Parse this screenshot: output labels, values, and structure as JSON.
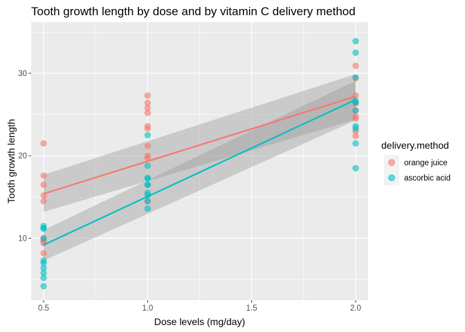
{
  "chart_data": {
    "type": "scatter",
    "title": "Tooth growth length by dose and by vitamin C delivery method",
    "xlabel": "Dose levels (mg/day)",
    "ylabel": "Tooth growth length",
    "xlim": [
      0.44,
      2.06
    ],
    "ylim": [
      2.5,
      36.2
    ],
    "x_ticks": [
      0.5,
      1.0,
      1.5,
      2.0
    ],
    "x_tick_labels": [
      "0.5",
      "1.0",
      "1.5",
      "2.0"
    ],
    "y_ticks": [
      10,
      20,
      30
    ],
    "y_tick_labels": [
      "10",
      "20",
      "30"
    ],
    "grid": true,
    "legend_title": "delivery.method",
    "legend_position": "right",
    "series": [
      {
        "name": "orange juice",
        "color": "#F8766D",
        "points": [
          [
            0.5,
            15.2
          ],
          [
            0.5,
            21.5
          ],
          [
            0.5,
            17.6
          ],
          [
            0.5,
            9.7
          ],
          [
            0.5,
            14.5
          ],
          [
            0.5,
            10.0
          ],
          [
            0.5,
            8.2
          ],
          [
            0.5,
            9.4
          ],
          [
            0.5,
            16.5
          ],
          [
            0.5,
            9.7
          ],
          [
            1.0,
            19.7
          ],
          [
            1.0,
            23.3
          ],
          [
            1.0,
            23.6
          ],
          [
            1.0,
            26.4
          ],
          [
            1.0,
            20.0
          ],
          [
            1.0,
            25.2
          ],
          [
            1.0,
            25.8
          ],
          [
            1.0,
            21.2
          ],
          [
            1.0,
            14.5
          ],
          [
            1.0,
            27.3
          ],
          [
            2.0,
            25.5
          ],
          [
            2.0,
            26.4
          ],
          [
            2.0,
            22.4
          ],
          [
            2.0,
            24.5
          ],
          [
            2.0,
            24.8
          ],
          [
            2.0,
            30.9
          ],
          [
            2.0,
            26.4
          ],
          [
            2.0,
            27.3
          ],
          [
            2.0,
            29.4
          ],
          [
            2.0,
            23.0
          ]
        ],
        "fit": {
          "x": [
            0.5,
            2.0
          ],
          "y": [
            15.4,
            27.2
          ]
        },
        "ci_lower": [
          13.2,
          24.4
        ],
        "ci_upper": [
          17.7,
          29.9
        ]
      },
      {
        "name": "ascorbic acid",
        "color": "#00BFC4",
        "points": [
          [
            0.5,
            4.2
          ],
          [
            0.5,
            11.5
          ],
          [
            0.5,
            7.3
          ],
          [
            0.5,
            5.8
          ],
          [
            0.5,
            6.4
          ],
          [
            0.5,
            10.0
          ],
          [
            0.5,
            11.2
          ],
          [
            0.5,
            11.2
          ],
          [
            0.5,
            5.2
          ],
          [
            0.5,
            7.0
          ],
          [
            1.0,
            16.5
          ],
          [
            1.0,
            16.5
          ],
          [
            1.0,
            15.2
          ],
          [
            1.0,
            17.3
          ],
          [
            1.0,
            22.5
          ],
          [
            1.0,
            17.3
          ],
          [
            1.0,
            13.6
          ],
          [
            1.0,
            14.5
          ],
          [
            1.0,
            18.8
          ],
          [
            1.0,
            15.5
          ],
          [
            2.0,
            23.6
          ],
          [
            2.0,
            18.5
          ],
          [
            2.0,
            33.9
          ],
          [
            2.0,
            25.5
          ],
          [
            2.0,
            26.4
          ],
          [
            2.0,
            32.5
          ],
          [
            2.0,
            26.7
          ],
          [
            2.0,
            21.5
          ],
          [
            2.0,
            23.3
          ],
          [
            2.0,
            29.5
          ]
        ],
        "fit": {
          "x": [
            0.5,
            2.0
          ],
          "y": [
            9.2,
            26.8
          ]
        },
        "ci_lower": [
          7.3,
          24.3
        ],
        "ci_upper": [
          11.0,
          29.1
        ]
      }
    ]
  }
}
